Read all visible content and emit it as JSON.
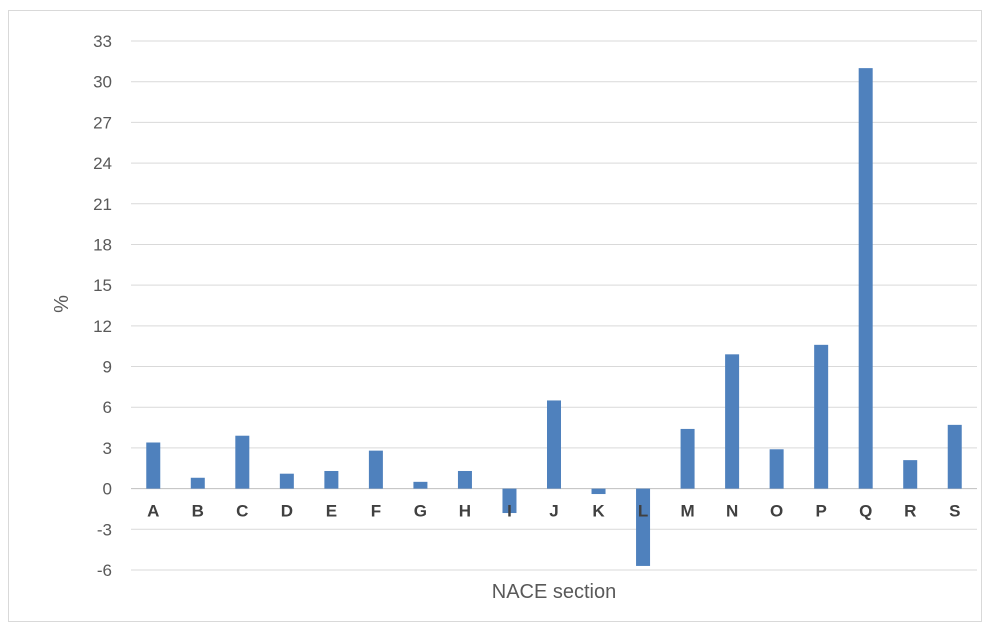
{
  "chart_data": {
    "type": "bar",
    "xlabel": "NACE section",
    "ylabel": "%",
    "ylim": [
      -6,
      33
    ],
    "yticks": [
      33,
      30,
      27,
      24,
      21,
      18,
      15,
      12,
      9,
      6,
      3,
      0,
      -3,
      -6
    ],
    "grid": true,
    "legend": "none",
    "bar_color": "#4f81bd",
    "categories": [
      "A",
      "B",
      "C",
      "D",
      "E",
      "F",
      "G",
      "H",
      "I",
      "J",
      "K",
      "L",
      "M",
      "N",
      "O",
      "P",
      "Q",
      "R",
      "S"
    ],
    "values": [
      3.4,
      0.8,
      3.9,
      1.1,
      1.3,
      2.8,
      0.5,
      1.3,
      -1.8,
      6.5,
      -0.4,
      -5.7,
      4.4,
      9.9,
      2.9,
      10.6,
      31.0,
      2.1,
      4.7
    ]
  }
}
